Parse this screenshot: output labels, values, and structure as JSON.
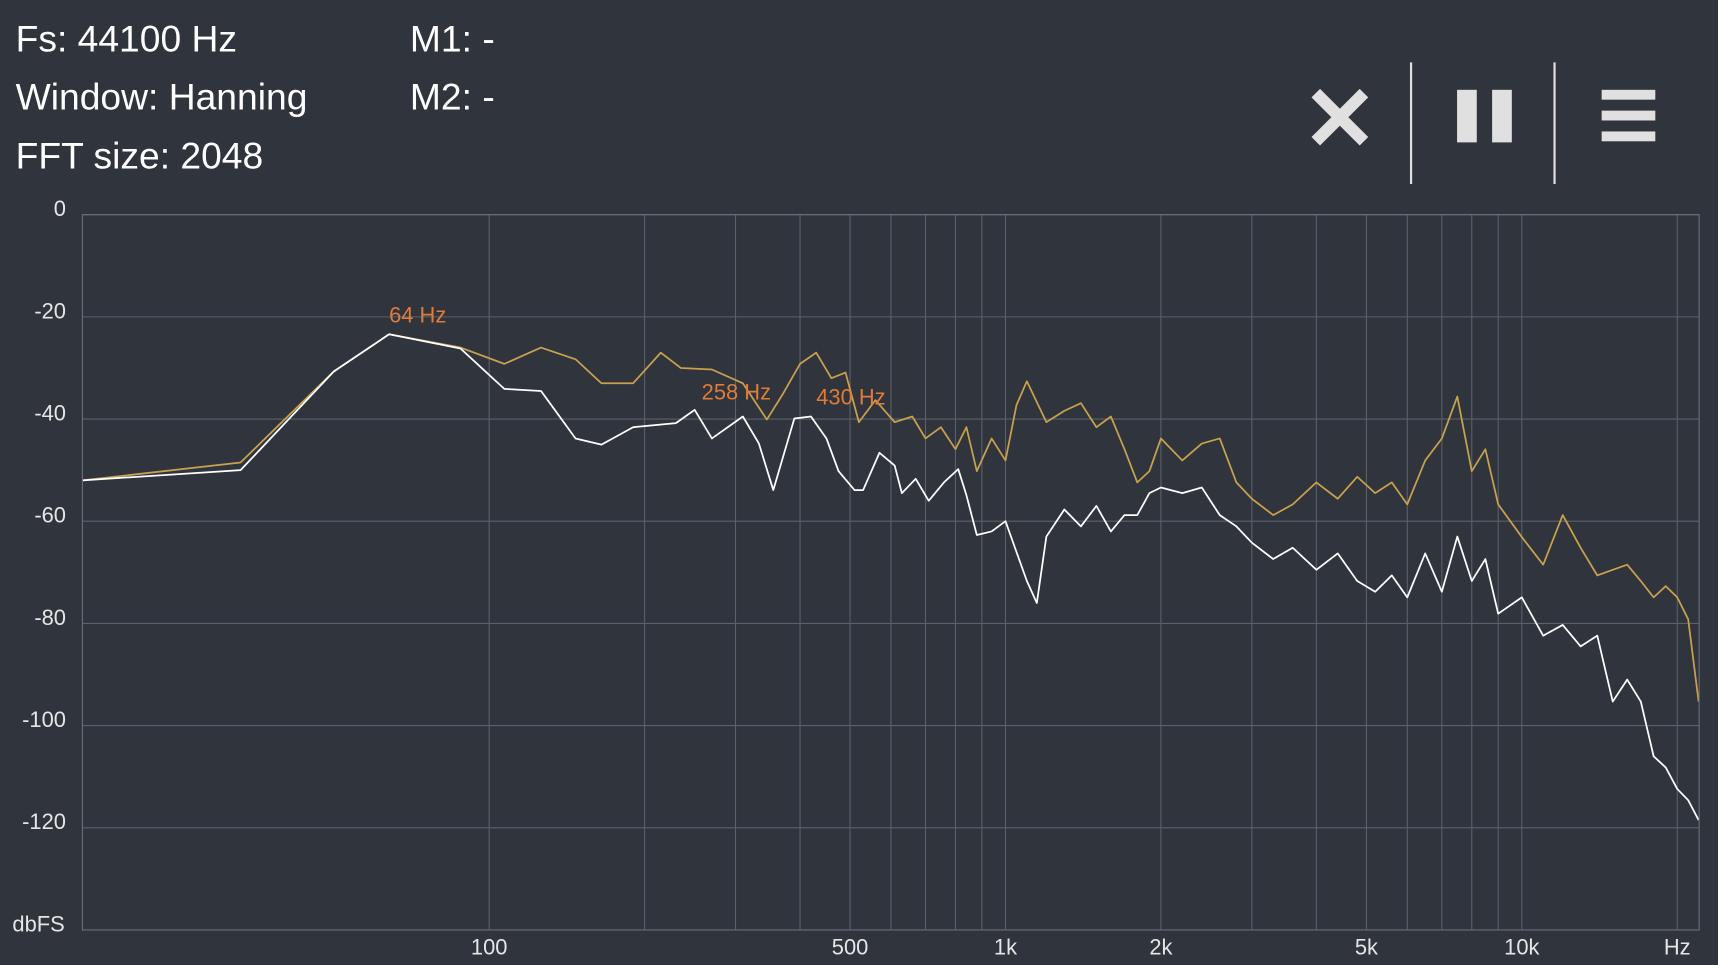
{
  "header": {
    "lines": [
      "Fs: 44100 Hz",
      "Window: Hanning",
      "FFT size: 2048"
    ],
    "markers": [
      "M1: -",
      "M2: -"
    ]
  },
  "chart_data": {
    "type": "line",
    "ylabel": "dbFS",
    "xscale": "log",
    "xlim": [
      16.3,
      22050
    ],
    "ylim": [
      -140,
      0
    ],
    "xticks": [
      100,
      500,
      {
        "value": 1000,
        "label": "1k"
      },
      {
        "value": 2000,
        "label": "2k"
      },
      {
        "value": 5000,
        "label": "5k"
      },
      {
        "value": 10000,
        "label": "10k"
      },
      {
        "value": 20000,
        "label": "Hz"
      }
    ],
    "xminor": [
      200,
      300,
      400,
      600,
      700,
      800,
      900,
      3000,
      4000,
      6000,
      7000,
      8000,
      9000
    ],
    "yticks": [
      0,
      -20,
      -40,
      -60,
      -80,
      -100,
      -120
    ],
    "grid": true,
    "series": [
      {
        "color": "#c9a14e",
        "x": [
          16.3,
          33,
          50,
          64,
          88,
          107,
          126,
          147,
          165,
          190,
          215,
          235,
          270,
          310,
          345,
          370,
          400,
          430,
          460,
          490,
          520,
          560,
          610,
          660,
          700,
          750,
          800,
          840,
          880,
          940,
          1000,
          1050,
          1100,
          1200,
          1300,
          1400,
          1500,
          1600,
          1700,
          1800,
          1900,
          2000,
          2200,
          2400,
          2600,
          2800,
          3000,
          3300,
          3600,
          4000,
          4400,
          4800,
          5200,
          5600,
          6000,
          6500,
          7000,
          7500,
          8000,
          8500,
          9000,
          10000,
          11000,
          12000,
          13000,
          14000,
          15000,
          16000,
          17000,
          18000,
          19000,
          20000,
          21000,
          22000
        ],
        "values": [
          -52,
          -48.5,
          -30.7,
          -23.4,
          -26,
          -29.2,
          -26,
          -28.3,
          -33,
          -33,
          -27,
          -30,
          -30.3,
          -33,
          -40.1,
          -35.2,
          -29.2,
          -27,
          -32,
          -30.9,
          -40.6,
          -36.3,
          -40.6,
          -39.5,
          -43.8,
          -41.6,
          -45.9,
          -41.6,
          -50.2,
          -43.8,
          -48.1,
          -37.3,
          -32.6,
          -40.6,
          -38.4,
          -36.9,
          -41.6,
          -39.5,
          -45.9,
          -52.4,
          -50.2,
          -43.8,
          -48.1,
          -44.8,
          -43.8,
          -52.4,
          -55.6,
          -58.8,
          -56.7,
          -52.4,
          -55.6,
          -51.3,
          -54.5,
          -52.4,
          -56.7,
          -48.1,
          -43.8,
          -35.6,
          -50.2,
          -45.9,
          -56.7,
          -63.1,
          -68.5,
          -58.8,
          -65.2,
          -70.6,
          -69.5,
          -68.5,
          -71.7,
          -74.9,
          -72.7,
          -74.9,
          -79.2,
          -95.3
        ]
      },
      {
        "color": "#ffffff",
        "x": [
          16.3,
          33,
          50,
          64,
          88,
          107,
          126,
          147,
          165,
          190,
          230,
          250,
          270,
          310,
          333,
          355,
          390,
          420,
          450,
          475,
          510,
          530,
          570,
          610,
          630,
          670,
          710,
          760,
          810,
          840,
          880,
          940,
          1000,
          1100,
          1150,
          1200,
          1300,
          1400,
          1500,
          1600,
          1700,
          1800,
          1900,
          2000,
          2200,
          2400,
          2600,
          2800,
          3000,
          3300,
          3600,
          4000,
          4400,
          4800,
          5200,
          5600,
          6000,
          6500,
          7000,
          7500,
          8000,
          8500,
          9000,
          10000,
          11000,
          12000,
          13000,
          14000,
          15000,
          16000,
          17000,
          18000,
          19000,
          20000,
          21000,
          22000
        ],
        "values": [
          -52,
          -50,
          -30.7,
          -23.4,
          -26.2,
          -34.1,
          -34.5,
          -43.8,
          -45,
          -41.6,
          -40.8,
          -38.2,
          -43.8,
          -39.5,
          -44.8,
          -53.9,
          -39.9,
          -39.5,
          -43.8,
          -50.2,
          -53.9,
          -53.9,
          -46.6,
          -49.1,
          -54.5,
          -51.7,
          -56,
          -52.4,
          -49.8,
          -54.9,
          -62.7,
          -62,
          -60,
          -71.7,
          -76,
          -63,
          -57.7,
          -61,
          -57,
          -62,
          -58.8,
          -58.8,
          -54.5,
          -53.4,
          -54.5,
          -53.4,
          -58.8,
          -61,
          -64.2,
          -67.4,
          -65.2,
          -69.5,
          -66.3,
          -71.7,
          -73.8,
          -70.6,
          -74.9,
          -66.3,
          -73.8,
          -63,
          -71.7,
          -67.4,
          -78.1,
          -74.9,
          -82.4,
          -80.3,
          -84.5,
          -82.4,
          -95.3,
          -91,
          -95.3,
          -106,
          -108.2,
          -112.4,
          -114.6,
          -118.5
        ]
      }
    ],
    "annotations": [
      {
        "text": "64 Hz",
        "x": 64,
        "y": -20
      },
      {
        "text": "258 Hz",
        "x": 258,
        "y": -35
      },
      {
        "text": "430 Hz",
        "x": 430,
        "y": -36
      }
    ],
    "annotation_color": "#e07b39"
  }
}
